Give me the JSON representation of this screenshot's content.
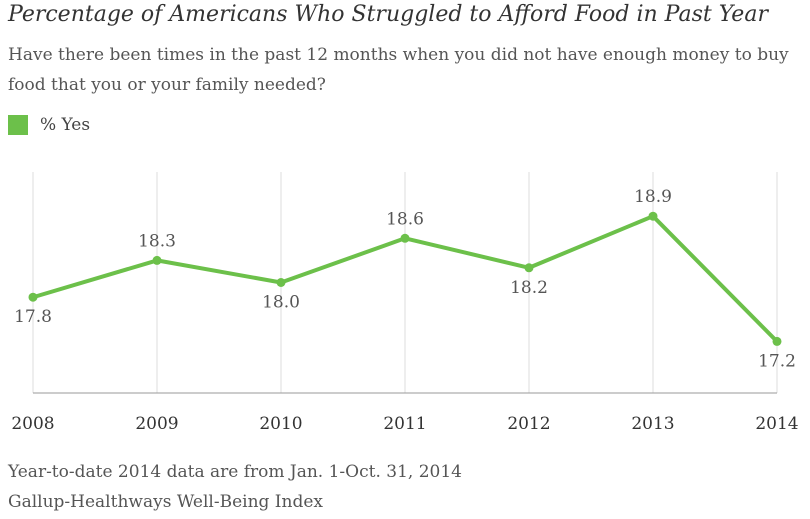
{
  "chart_data": {
    "type": "line",
    "title": "Percentage of Americans Who Struggled to Afford Food in Past Year",
    "subtitle": "Have there been times in the past 12 months when you did not have enough money to buy food that you or your family needed?",
    "categories": [
      "2008",
      "2009",
      "2010",
      "2011",
      "2012",
      "2013",
      "2014"
    ],
    "series": [
      {
        "name": "% Yes",
        "values": [
          17.8,
          18.3,
          18.0,
          18.6,
          18.2,
          18.9,
          17.2
        ],
        "labels": [
          "17.8",
          "18.3",
          "18.0",
          "18.6",
          "18.2",
          "18.9",
          "17.2"
        ],
        "label_positions": [
          "below",
          "above",
          "below",
          "above",
          "below",
          "above",
          "below"
        ]
      }
    ],
    "ylim": [
      16.5,
      19.5
    ],
    "xlabel": "",
    "ylabel": "",
    "grid": "vertical",
    "legend": "top-left"
  },
  "colors": {
    "series": "#6cc04a",
    "grid": "#dddddd",
    "axis": "#999999",
    "text": "#333333"
  },
  "footnotes": {
    "line1": "Year-to-date 2014 data are from Jan. 1-Oct. 31, 2014",
    "line2": "Gallup-Healthways Well-Being Index"
  }
}
